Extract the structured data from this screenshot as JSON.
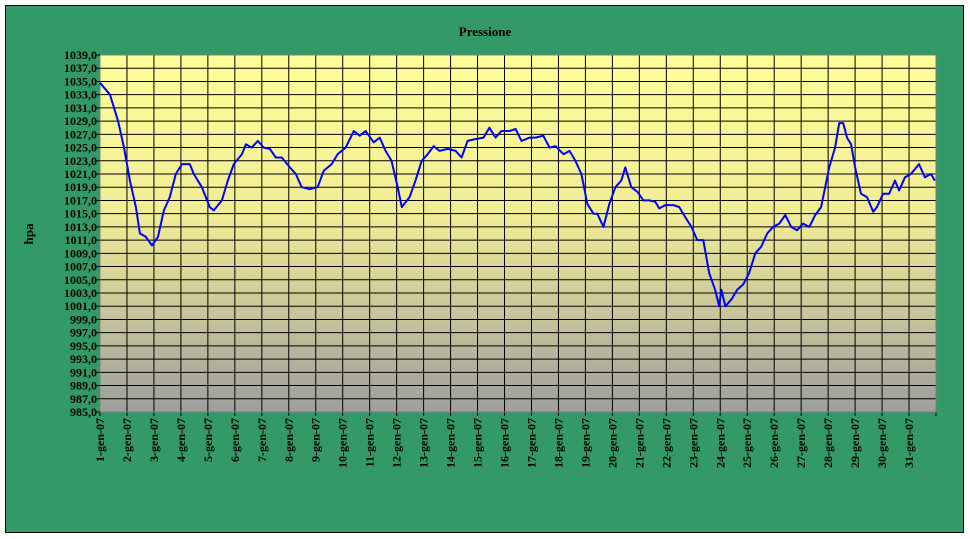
{
  "chart_data": {
    "type": "line",
    "title": "Pressione",
    "xlabel": "",
    "ylabel": "hpa",
    "ylim": [
      985,
      1039
    ],
    "ytick_step": 2,
    "yticks": [
      "1039,0",
      "1037,0",
      "1035,0",
      "1033,0",
      "1031,0",
      "1029,0",
      "1027,0",
      "1025,0",
      "1023,0",
      "1021,0",
      "1019,0",
      "1017,0",
      "1015,0",
      "1013,0",
      "1011,0",
      "1009,0",
      "1007,0",
      "1005,0",
      "1003,0",
      "1001,0",
      "999,0",
      "997,0",
      "995,0",
      "993,0",
      "991,0",
      "989,0",
      "987,0",
      "985,0"
    ],
    "x_unit": "days since 1-gen-07",
    "xlim": [
      0,
      31
    ],
    "xticks": [
      "1-gen-07",
      "2-gen-07",
      "3-gen-07",
      "4-gen-07",
      "5-gen-07",
      "6-gen-07",
      "7-gen-07",
      "8-gen-07",
      "9-gen-07",
      "10-gen-07",
      "11-gen-07",
      "12-gen-07",
      "13-gen-07",
      "14-gen-07",
      "15-gen-07",
      "16-gen-07",
      "17-gen-07",
      "18-gen-07",
      "19-gen-07",
      "20-gen-07",
      "21-gen-07",
      "22-gen-07",
      "23-gen-07",
      "24-gen-07",
      "25-gen-07",
      "26-gen-07",
      "27-gen-07",
      "28-gen-07",
      "29-gen-07",
      "30-gen-07",
      "31-gen-07"
    ],
    "grid": true,
    "legend": "none",
    "colors": {
      "line": "#0000FF",
      "frame": "#339966",
      "plot_top": "#FFFF99",
      "plot_bottom": "#999999"
    },
    "series": [
      {
        "name": "Pressione",
        "points": [
          [
            0,
            1034.8
          ],
          [
            0.37,
            1033
          ],
          [
            0.67,
            1029
          ],
          [
            0.89,
            1025
          ],
          [
            1.11,
            1020
          ],
          [
            1.33,
            1016
          ],
          [
            1.48,
            1012
          ],
          [
            1.7,
            1011.5
          ],
          [
            1.93,
            1010.2
          ],
          [
            2.15,
            1011.5
          ],
          [
            2.37,
            1015.5
          ],
          [
            2.59,
            1017.5
          ],
          [
            2.81,
            1021
          ],
          [
            3.04,
            1022.5
          ],
          [
            3.33,
            1022.5
          ],
          [
            3.48,
            1021
          ],
          [
            3.78,
            1019
          ],
          [
            4.07,
            1016
          ],
          [
            4.22,
            1015.5
          ],
          [
            4.52,
            1017
          ],
          [
            4.74,
            1020
          ],
          [
            4.96,
            1022.5
          ],
          [
            5.26,
            1024
          ],
          [
            5.41,
            1025.5
          ],
          [
            5.63,
            1025
          ],
          [
            5.85,
            1026
          ],
          [
            6.07,
            1025
          ],
          [
            6.3,
            1024.8
          ],
          [
            6.52,
            1023.5
          ],
          [
            6.74,
            1023.5
          ],
          [
            7.04,
            1022
          ],
          [
            7.26,
            1021
          ],
          [
            7.48,
            1019
          ],
          [
            7.78,
            1018.7
          ],
          [
            8.07,
            1019
          ],
          [
            8.3,
            1021.5
          ],
          [
            8.59,
            1022.5
          ],
          [
            8.81,
            1024
          ],
          [
            9.11,
            1025
          ],
          [
            9.41,
            1027.5
          ],
          [
            9.63,
            1026.8
          ],
          [
            9.85,
            1027.5
          ],
          [
            10.15,
            1025.8
          ],
          [
            10.37,
            1026.5
          ],
          [
            10.59,
            1024.5
          ],
          [
            10.81,
            1023
          ],
          [
            11.04,
            1019
          ],
          [
            11.19,
            1016
          ],
          [
            11.48,
            1017.5
          ],
          [
            11.7,
            1020
          ],
          [
            11.93,
            1023
          ],
          [
            12.15,
            1024
          ],
          [
            12.37,
            1025.2
          ],
          [
            12.59,
            1024.5
          ],
          [
            12.89,
            1024.8
          ],
          [
            13.19,
            1024.5
          ],
          [
            13.41,
            1023.5
          ],
          [
            13.63,
            1026
          ],
          [
            13.93,
            1026.3
          ],
          [
            14.22,
            1026.5
          ],
          [
            14.44,
            1028
          ],
          [
            14.67,
            1026.5
          ],
          [
            14.89,
            1027.5
          ],
          [
            15.19,
            1027.5
          ],
          [
            15.41,
            1027.8
          ],
          [
            15.63,
            1026
          ],
          [
            15.93,
            1026.5
          ],
          [
            16.15,
            1026.5
          ],
          [
            16.44,
            1026.8
          ],
          [
            16.67,
            1025
          ],
          [
            16.89,
            1025.2
          ],
          [
            17.19,
            1024
          ],
          [
            17.41,
            1024.5
          ],
          [
            17.63,
            1023
          ],
          [
            17.85,
            1021
          ],
          [
            18.07,
            1016.5
          ],
          [
            18.3,
            1015
          ],
          [
            18.44,
            1015
          ],
          [
            18.67,
            1013
          ],
          [
            18.89,
            1016.5
          ],
          [
            19.11,
            1019
          ],
          [
            19.33,
            1020
          ],
          [
            19.48,
            1022
          ],
          [
            19.7,
            1019
          ],
          [
            19.93,
            1018.3
          ],
          [
            20.15,
            1017
          ],
          [
            20.37,
            1017
          ],
          [
            20.59,
            1016.8
          ],
          [
            20.74,
            1015.8
          ],
          [
            20.96,
            1016.3
          ],
          [
            21.26,
            1016.3
          ],
          [
            21.48,
            1016
          ],
          [
            21.7,
            1014.5
          ],
          [
            21.93,
            1013
          ],
          [
            22.15,
            1011
          ],
          [
            22.37,
            1011
          ],
          [
            22.59,
            1006
          ],
          [
            22.81,
            1003.5
          ],
          [
            22.96,
            1001
          ],
          [
            23.04,
            1003.5
          ],
          [
            23.19,
            1001
          ],
          [
            23.41,
            1002
          ],
          [
            23.63,
            1003.5
          ],
          [
            23.85,
            1004.3
          ],
          [
            24.07,
            1006
          ],
          [
            24.3,
            1009
          ],
          [
            24.52,
            1010
          ],
          [
            24.74,
            1012
          ],
          [
            24.96,
            1013
          ],
          [
            25.19,
            1013.5
          ],
          [
            25.41,
            1014.8
          ],
          [
            25.63,
            1013
          ],
          [
            25.85,
            1012.5
          ],
          [
            26.07,
            1013.5
          ],
          [
            26.3,
            1013
          ],
          [
            26.52,
            1014.8
          ],
          [
            26.74,
            1016
          ],
          [
            26.89,
            1019
          ],
          [
            27.04,
            1022
          ],
          [
            27.26,
            1025
          ],
          [
            27.41,
            1028.7
          ],
          [
            27.56,
            1028.7
          ],
          [
            27.7,
            1026.5
          ],
          [
            27.85,
            1025.5
          ],
          [
            28.0,
            1022
          ],
          [
            28.22,
            1018
          ],
          [
            28.44,
            1017.5
          ],
          [
            28.67,
            1015.3
          ],
          [
            28.81,
            1016
          ],
          [
            29.04,
            1018
          ],
          [
            29.26,
            1018
          ],
          [
            29.48,
            1020
          ],
          [
            29.63,
            1018.5
          ],
          [
            29.85,
            1020.5
          ],
          [
            30.07,
            1021
          ],
          [
            30.37,
            1022.5
          ],
          [
            30.59,
            1020.5
          ],
          [
            30.81,
            1021
          ],
          [
            30.96,
            1020
          ]
        ]
      }
    ]
  }
}
